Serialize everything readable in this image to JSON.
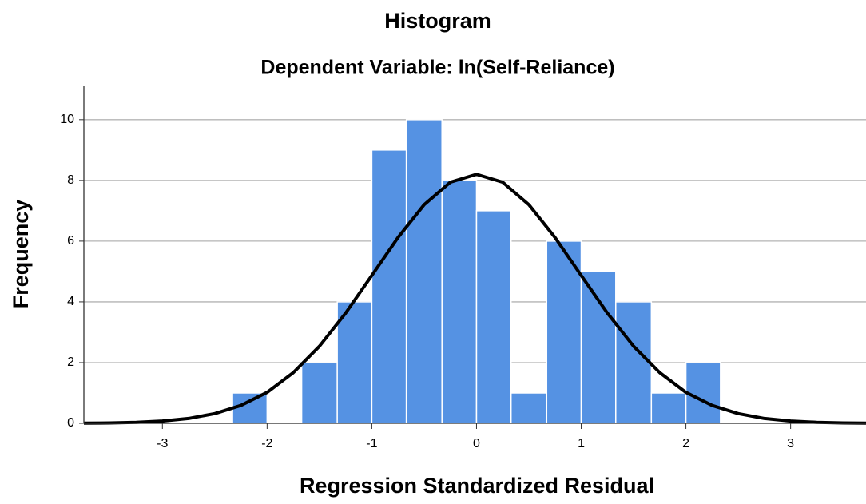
{
  "chart_data": {
    "type": "histogram",
    "title": "Histogram",
    "subtitle": "Dependent Variable: ln(Self-Reliance)",
    "x_label": "Regression Standardized Residual",
    "y_label": "Frequency",
    "bins": [
      -2.33,
      -2.0,
      -1.67,
      -1.33,
      -1.0,
      -0.67,
      -0.33,
      0,
      0.33,
      0.67,
      1.0,
      1.33,
      1.67,
      2.0,
      2.33
    ],
    "values": [
      1,
      0,
      2,
      4,
      9,
      10,
      8,
      7,
      1,
      6,
      5,
      4,
      1,
      2
    ],
    "color": "#5592e3",
    "curve": {
      "color": "#000000",
      "x": [
        -3.75,
        -3.5,
        -3.25,
        -3.0,
        -2.75,
        -2.5,
        -2.25,
        -2.0,
        -1.75,
        -1.5,
        -1.25,
        -1.0,
        -0.75,
        -0.5,
        -0.25,
        0,
        0.25,
        0.5,
        0.75,
        1.0,
        1.25,
        1.5,
        1.75,
        2.0,
        2.25,
        2.5,
        2.75,
        3.0,
        3.25,
        3.5,
        3.72
      ],
      "values": [
        0.005,
        0.014,
        0.034,
        0.076,
        0.16,
        0.32,
        0.59,
        1.02,
        1.67,
        2.54,
        3.63,
        4.87,
        6.12,
        7.2,
        7.94,
        8.2,
        7.94,
        7.2,
        6.12,
        4.87,
        3.63,
        2.54,
        1.67,
        1.02,
        0.59,
        0.32,
        0.16,
        0.076,
        0.034,
        0.014,
        0.006
      ]
    },
    "xlim": [
      -3.75,
      3.72
    ],
    "xticks": [
      -3,
      -2,
      -1,
      0,
      1,
      2,
      3
    ],
    "ylim": [
      0,
      11.1
    ],
    "yticks": [
      0,
      2,
      4,
      6,
      8,
      10
    ],
    "grid": true
  }
}
